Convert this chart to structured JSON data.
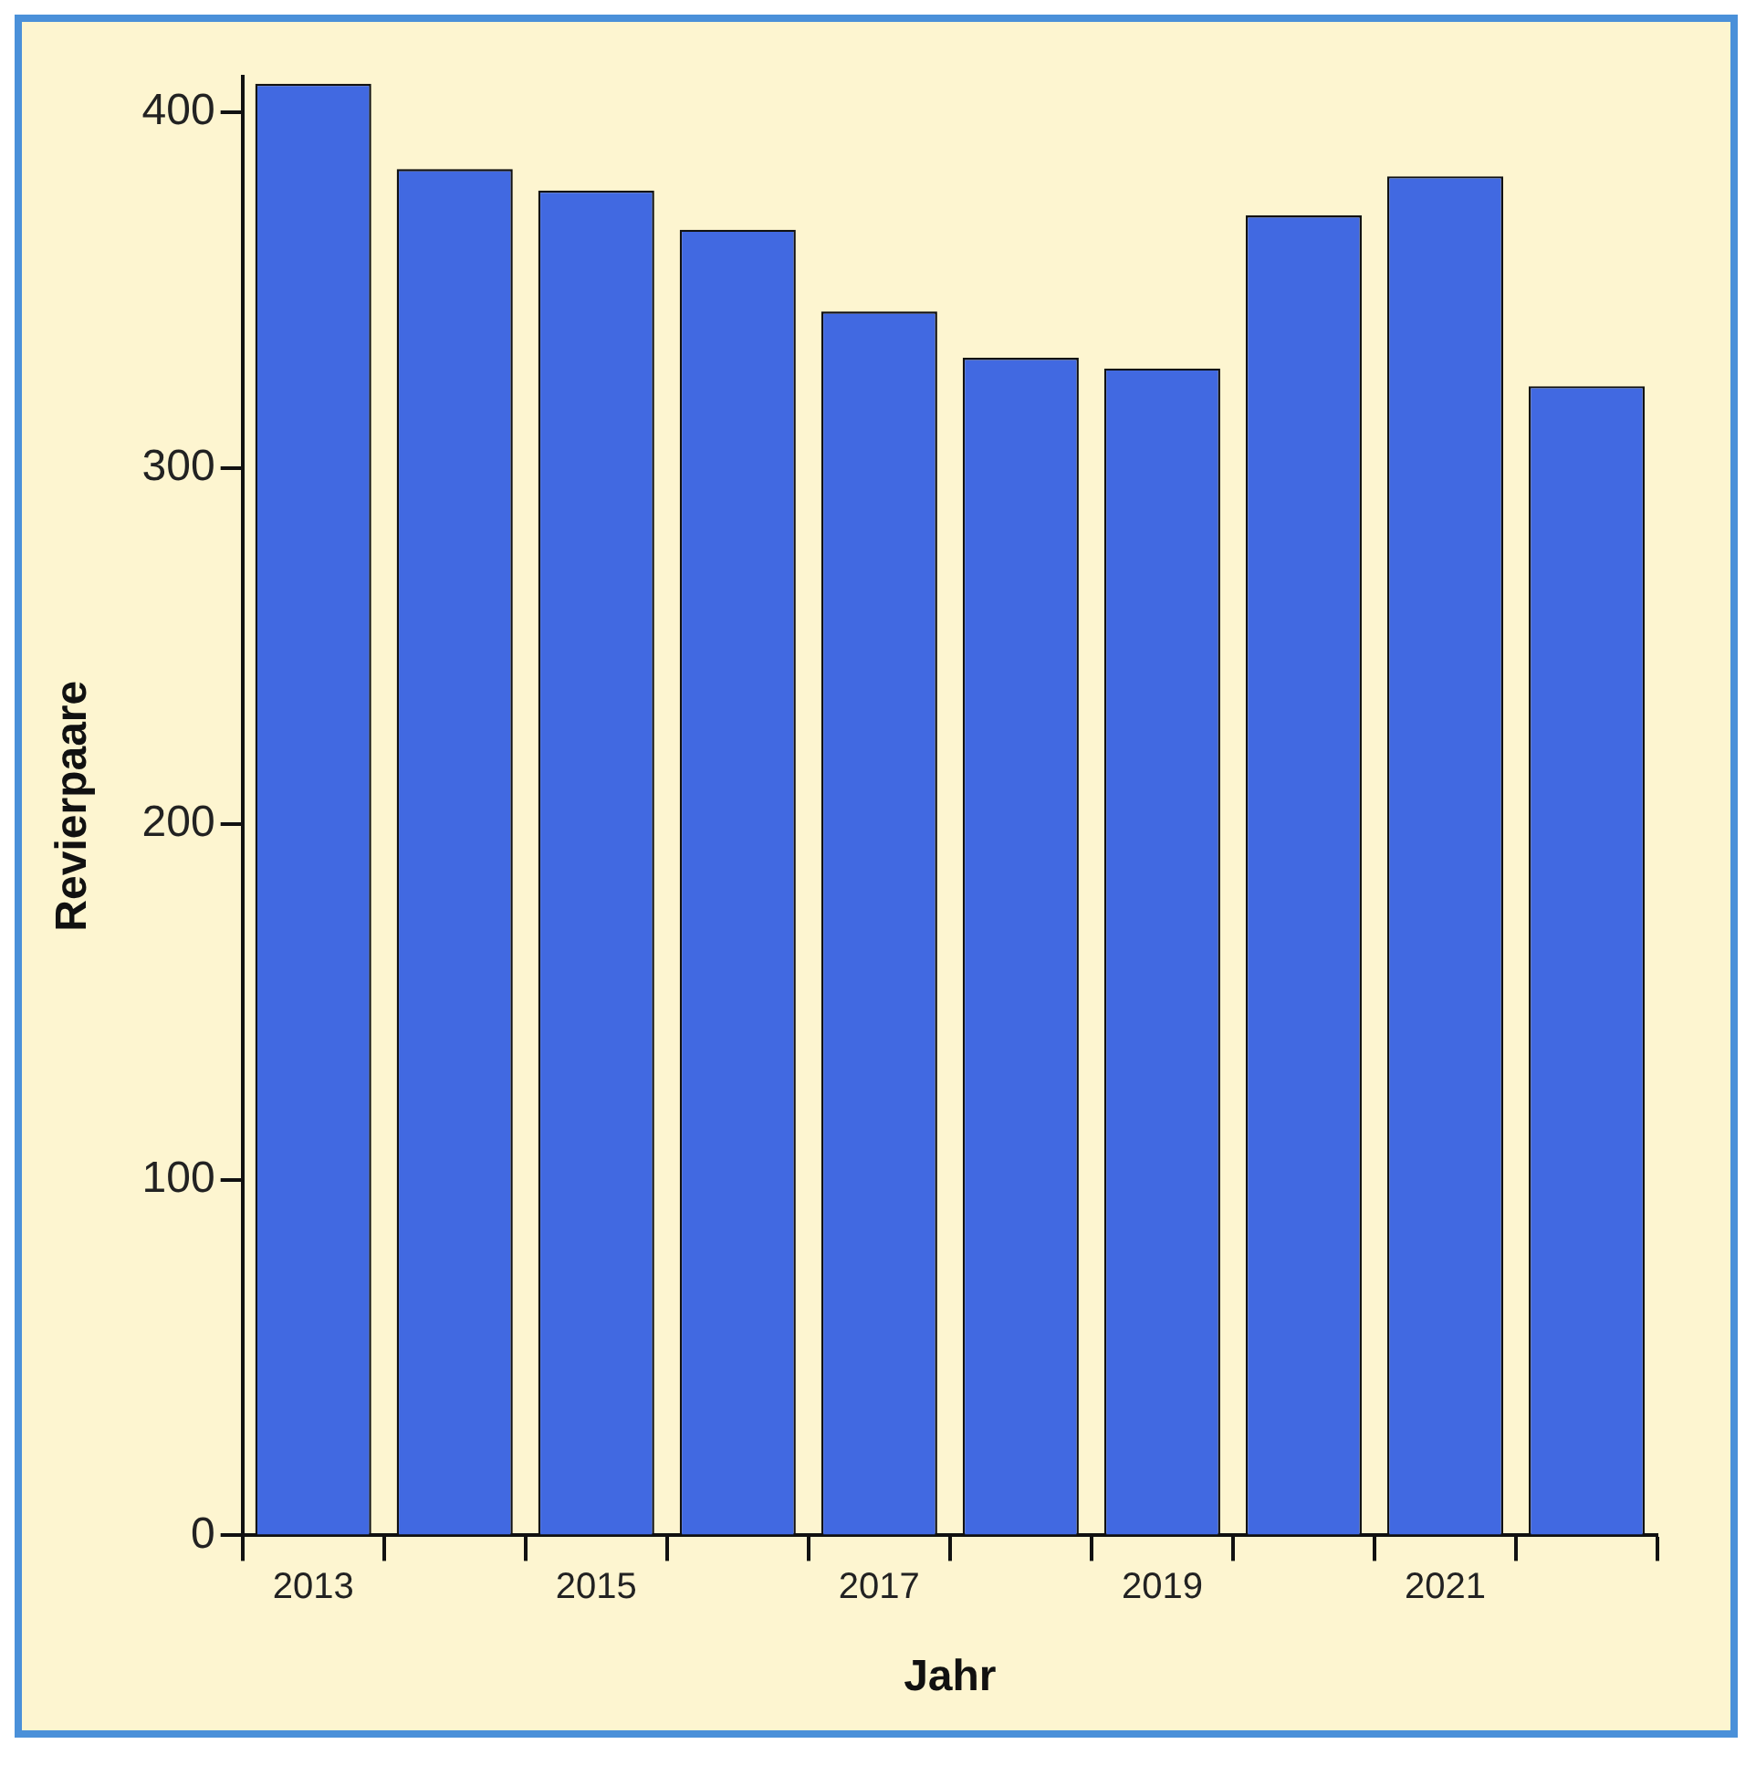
{
  "chart_data": {
    "type": "bar",
    "xlabel": "Jahr",
    "ylabel": "Revierpaare",
    "categories": [
      "2013",
      null,
      "2015",
      null,
      "2017",
      null,
      "2019",
      null,
      "2021",
      null
    ],
    "values": [
      408,
      384,
      378,
      367,
      344,
      331,
      328,
      371,
      382,
      323
    ],
    "color": "#4169e1",
    "ylim": [
      0,
      410
    ],
    "yticks": [
      0,
      100,
      200,
      300,
      400
    ],
    "grid": false,
    "legend": false
  }
}
